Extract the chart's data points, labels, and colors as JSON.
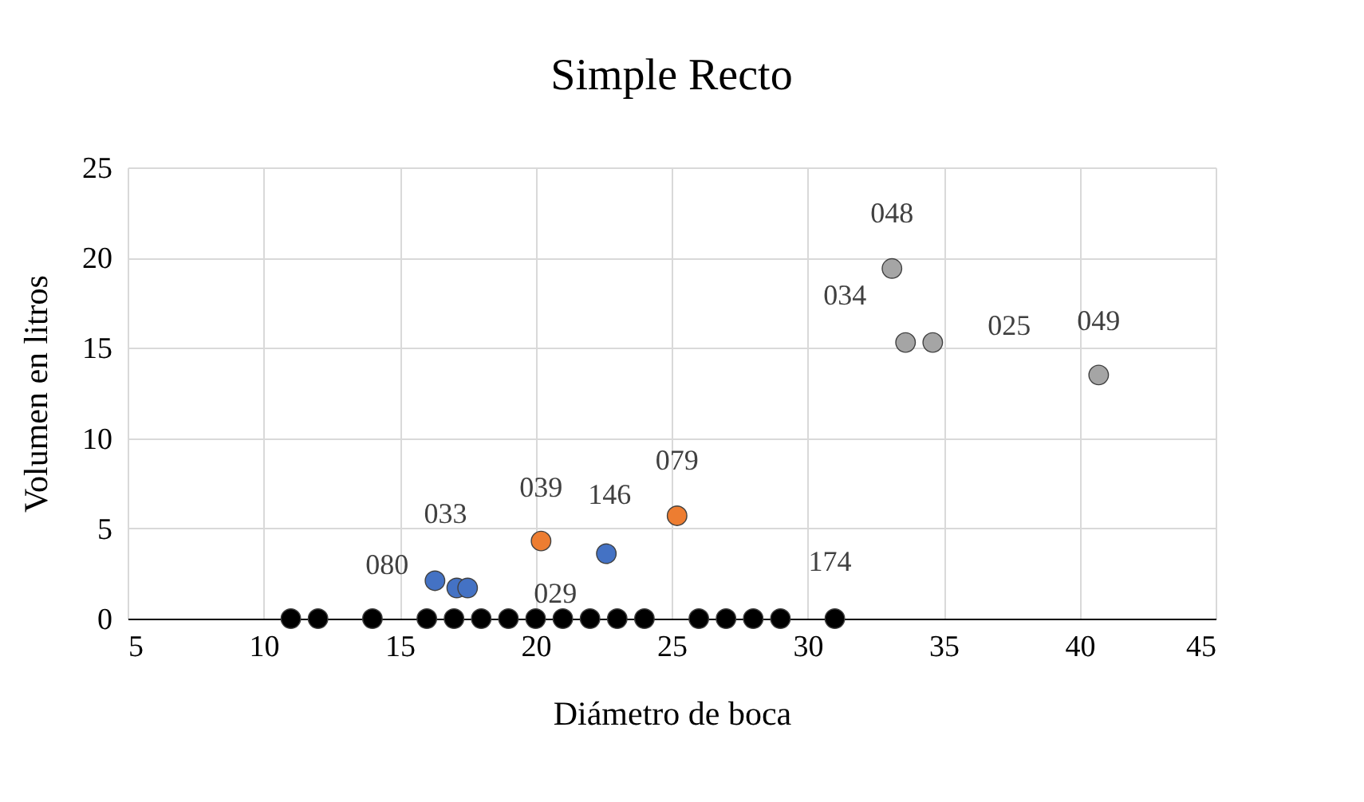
{
  "chart_data": {
    "type": "scatter",
    "title": "Simple Recto",
    "xlabel": "Diámetro de boca",
    "ylabel": "Volumen en litros",
    "xlim": [
      5,
      45
    ],
    "xticks": [
      5,
      10,
      15,
      20,
      25,
      30,
      35,
      40,
      45
    ],
    "ylim": [
      0,
      25
    ],
    "yticks": [
      0,
      5,
      10,
      15,
      20,
      25
    ],
    "grid": true,
    "marker": "circle",
    "series": [
      {
        "color": "#000000",
        "x": [
          11,
          12,
          14,
          16,
          17,
          18,
          19,
          20,
          21,
          22,
          23,
          24,
          26,
          27,
          28,
          29,
          31
        ],
        "values": [
          0,
          0,
          0,
          0,
          0,
          0,
          0,
          0,
          0,
          0,
          0,
          0,
          0,
          0,
          0,
          0,
          0
        ]
      },
      {
        "color": "#4472c4",
        "x": [
          16.3,
          17.1,
          17.5,
          22.6
        ],
        "values": [
          2.1,
          1.7,
          1.7,
          3.6
        ]
      },
      {
        "color": "#ed7d31",
        "x": [
          20.2,
          25.2
        ],
        "values": [
          4.3,
          5.7
        ]
      },
      {
        "color": "#a5a5a5",
        "x": [
          33.1,
          33.6,
          34.6,
          40.7
        ],
        "values": [
          19.4,
          15.3,
          15.3,
          13.5
        ]
      }
    ],
    "annotations": [
      {
        "text": "080",
        "x": 16.3,
        "y": 2.1
      },
      {
        "text": "033",
        "x": 17.1,
        "y": 1.7
      },
      {
        "text": "029",
        "x": 17.5,
        "y": 1.7
      },
      {
        "text": "146",
        "x": 22.6,
        "y": 3.6
      },
      {
        "text": "039",
        "x": 20.2,
        "y": 4.3
      },
      {
        "text": "079",
        "x": 25.2,
        "y": 5.7
      },
      {
        "text": "048",
        "x": 33.1,
        "y": 19.4
      },
      {
        "text": "034",
        "x": 33.6,
        "y": 15.3
      },
      {
        "text": "025",
        "x": 34.6,
        "y": 15.3
      },
      {
        "text": "049",
        "x": 40.7,
        "y": 13.5
      },
      {
        "text": "174",
        "x": 31,
        "y": 0
      }
    ]
  }
}
